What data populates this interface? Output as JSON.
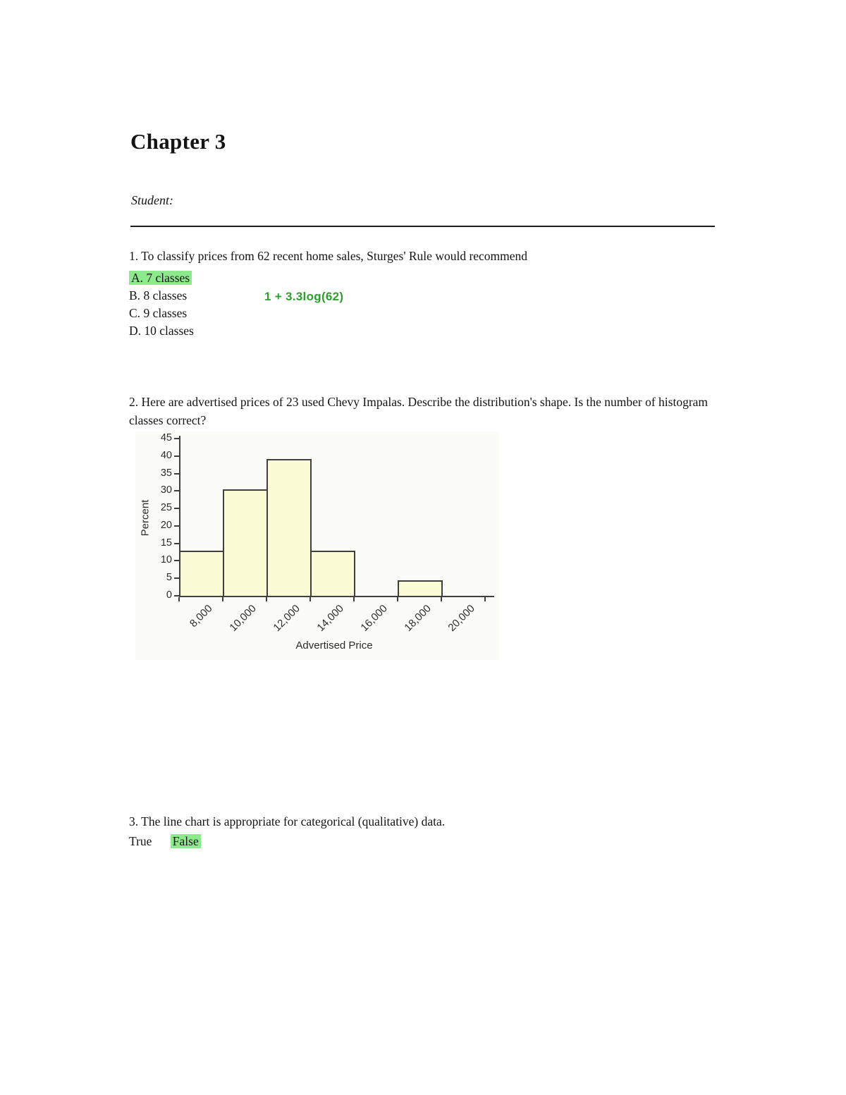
{
  "page": {
    "title": "Chapter 3",
    "student_label": "Student:"
  },
  "colors": {
    "answer_highlight_green": "#8dea8c",
    "annotation_green": "#2e9e2e",
    "bar_fill": "#fbfbd6",
    "bar_stroke": "#3f3f3f"
  },
  "questions": {
    "q1": {
      "text": "1. To classify prices from 62 recent home sales, Sturges' Rule would recommend",
      "annotation": "1 + 3.3log(62)",
      "options": [
        {
          "label": "A.",
          "text": "7 classes",
          "highlighted": true
        },
        {
          "label": "B.",
          "text": "8 classes",
          "highlighted": false
        },
        {
          "label": "C.",
          "text": "9 classes",
          "highlighted": false
        },
        {
          "label": "D.",
          "text": "10 classes",
          "highlighted": false
        }
      ]
    },
    "q2": {
      "text": "2. Here are advertised prices of 23 used Chevy Impalas. Describe the distribution's shape. Is the number of histogram classes correct?"
    },
    "q3": {
      "text": "3. The line chart is appropriate for categorical (qualitative) data.",
      "true_label": "True",
      "false_label": "False",
      "selected": "False"
    }
  },
  "chart_data": {
    "type": "bar",
    "title": "",
    "categories": [
      "8,000",
      "10,000",
      "12,000",
      "14,000",
      "16,000",
      "18,000",
      "20,000"
    ],
    "values": [
      13,
      30.4,
      39.1,
      13,
      0,
      4.4,
      0
    ],
    "xlabel": "Advertised Price",
    "ylabel": "Percent",
    "ylim": [
      0,
      45
    ],
    "yticks": [
      0,
      5,
      10,
      15,
      20,
      25,
      30,
      35,
      40,
      45
    ],
    "grid": false,
    "legend": false
  }
}
